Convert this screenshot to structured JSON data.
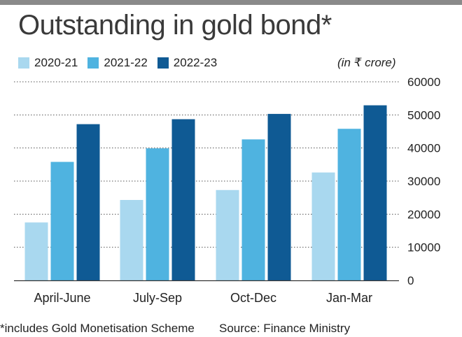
{
  "title": "Outstanding in gold bond*",
  "unit_note": "(in ₹ crore)",
  "footnote": "*includes Gold Monetisation Scheme",
  "source": "Source: Finance Ministry",
  "colors": {
    "2020-21": "#a9d8ef",
    "2021-22": "#4fb3e0",
    "2022-23": "#0f5a94",
    "gridline": "#555555",
    "topbar": "#8a8a8a"
  },
  "chart_data": {
    "type": "bar",
    "categories": [
      "April-June",
      "July-Sep",
      "Oct-Dec",
      "Jan-Mar"
    ],
    "series": [
      {
        "name": "2020-21",
        "values": [
          17500,
          24300,
          27300,
          32600
        ]
      },
      {
        "name": "2021-22",
        "values": [
          35800,
          39900,
          42600,
          45800
        ]
      },
      {
        "name": "2022-23",
        "values": [
          47200,
          48700,
          50300,
          52900
        ]
      }
    ],
    "yticks": [
      "0",
      "10000",
      "20000",
      "30000",
      "40000",
      "50000",
      "60000"
    ],
    "ylim": [
      0,
      60000
    ],
    "y_axis_side": "right",
    "grid": true,
    "legend_position": "top-left"
  }
}
